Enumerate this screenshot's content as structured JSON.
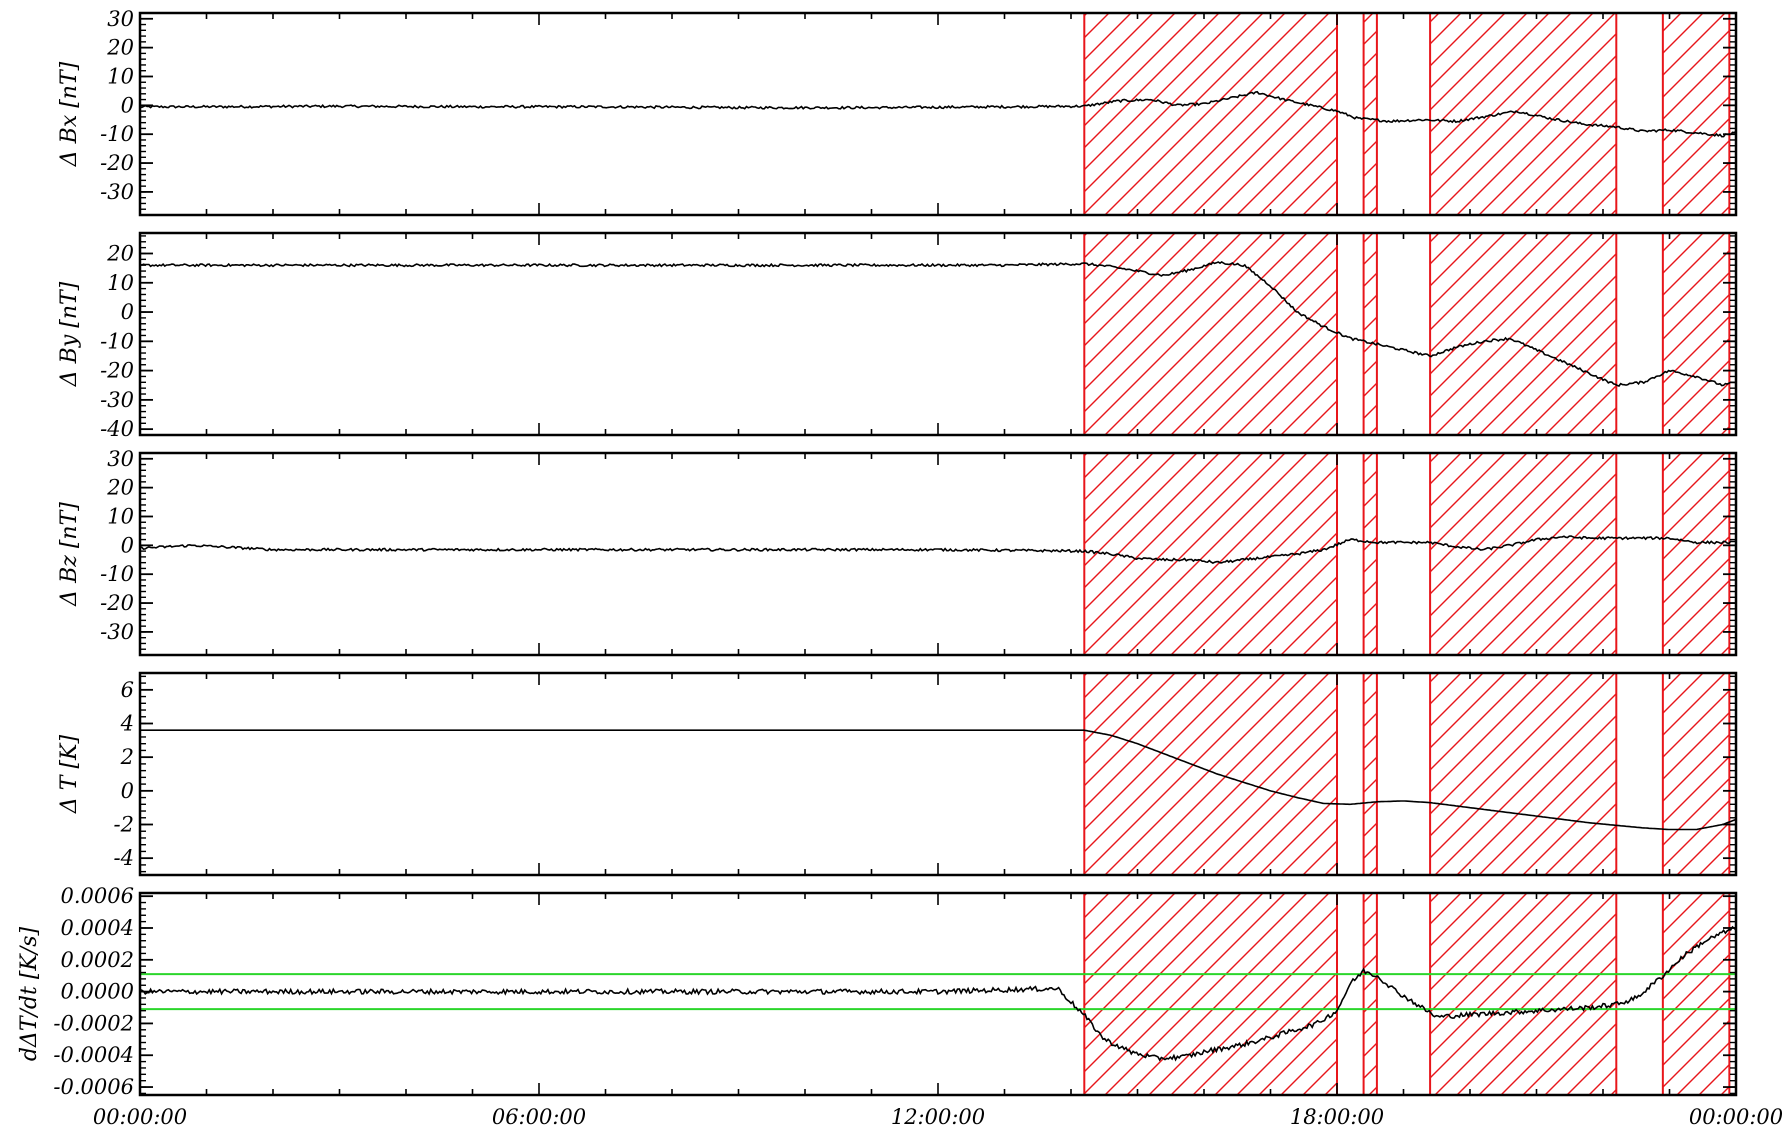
{
  "chart_data": {
    "type": "line",
    "x_range_hours": [
      0,
      24
    ],
    "x_tick_labels": [
      "00:00:00",
      "06:00:00",
      "12:00:00",
      "18:00:00",
      "00:00:00"
    ],
    "x_tick_hours": [
      0,
      6,
      12,
      18,
      24
    ],
    "flagged_intervals_hours": [
      [
        14.2,
        18.0
      ],
      [
        18.4,
        18.6
      ],
      [
        19.4,
        22.2
      ],
      [
        22.9,
        23.9
      ]
    ],
    "colors": {
      "trace": "#000000",
      "hatch": "#e8161b",
      "threshold": "#2bd62b"
    },
    "panels": [
      {
        "ylabel": "Δ Bx [nT]",
        "ylim": [
          -38,
          32
        ],
        "y_ticks": [
          30,
          20,
          10,
          0,
          -10,
          -20,
          -30
        ],
        "y_tick_labels": [
          "30",
          "20",
          "10",
          "0",
          "-10",
          "-20",
          "-30"
        ],
        "x_hours": [
          0,
          1,
          3,
          5,
          7,
          9,
          11,
          13,
          14.2,
          14.7,
          15.2,
          15.6,
          16.0,
          16.4,
          16.8,
          17.2,
          17.6,
          18.0,
          18.3,
          18.8,
          19.3,
          19.8,
          20.2,
          20.7,
          21.2,
          21.7,
          22.2,
          22.6,
          23.0,
          23.4,
          23.8,
          24.0
        ],
        "values": [
          -0.5,
          -0.5,
          -0.3,
          -0.5,
          -0.5,
          -0.8,
          -0.8,
          -0.5,
          -0.3,
          1.5,
          2,
          0,
          0.5,
          2.5,
          4.5,
          2,
          0,
          -2,
          -4.5,
          -5.5,
          -5,
          -5.5,
          -4,
          -2,
          -4.5,
          -6.5,
          -7.5,
          -9,
          -8.5,
          -9.5,
          -10.5,
          -9.5
        ],
        "thresholds": []
      },
      {
        "ylabel": "Δ By [nT]",
        "ylim": [
          -42,
          27
        ],
        "y_ticks": [
          20,
          10,
          0,
          -10,
          -20,
          -30,
          -40
        ],
        "y_tick_labels": [
          "20",
          "10",
          "0",
          "-10",
          "-20",
          "-30",
          "-40"
        ],
        "x_hours": [
          0,
          1,
          3,
          5,
          7,
          9,
          11,
          13,
          14.2,
          14.6,
          15.0,
          15.4,
          15.8,
          16.2,
          16.6,
          17.0,
          17.4,
          17.8,
          18.2,
          18.6,
          19.0,
          19.4,
          19.8,
          20.2,
          20.6,
          21.0,
          21.4,
          21.8,
          22.2,
          22.6,
          23.0,
          23.4,
          23.8,
          24.0
        ],
        "values": [
          16,
          16,
          16,
          16,
          16,
          16,
          16,
          16,
          16.5,
          15.5,
          14,
          12.5,
          14.5,
          17,
          16,
          9,
          0,
          -5,
          -9,
          -11,
          -13,
          -15,
          -12,
          -10,
          -9,
          -13,
          -17,
          -21,
          -25,
          -24,
          -20,
          -22,
          -25,
          -24
        ],
        "thresholds": []
      },
      {
        "ylabel": "Δ Bz [nT]",
        "ylim": [
          -38,
          32
        ],
        "y_ticks": [
          30,
          20,
          10,
          0,
          -10,
          -20,
          -30
        ],
        "y_tick_labels": [
          "30",
          "20",
          "10",
          "0",
          "-10",
          "-20",
          "-30"
        ],
        "x_hours": [
          0,
          0.8,
          2,
          4,
          6,
          8,
          10,
          12,
          14.2,
          14.6,
          15.0,
          15.4,
          15.8,
          16.2,
          16.6,
          17.0,
          17.4,
          17.8,
          18.2,
          18.6,
          19.0,
          19.4,
          19.8,
          20.2,
          20.6,
          21.0,
          21.4,
          21.8,
          22.2,
          22.6,
          23.0,
          23.4,
          23.8,
          24.0
        ],
        "values": [
          -1,
          0,
          -1.5,
          -1.5,
          -1.5,
          -1.5,
          -1.5,
          -1.5,
          -2,
          -3,
          -4.5,
          -5,
          -5,
          -6,
          -5,
          -4,
          -3,
          -1.5,
          2,
          1,
          1,
          1,
          -0.5,
          -1.5,
          0,
          2,
          3,
          2.5,
          2.5,
          2.5,
          2.5,
          1,
          1,
          1
        ],
        "thresholds": []
      },
      {
        "ylabel": "Δ T [K]",
        "ylim": [
          -5,
          7
        ],
        "y_ticks": [
          6,
          4,
          2,
          0,
          -2,
          -4
        ],
        "y_tick_labels": [
          "6",
          "4",
          "2",
          "0",
          "-2",
          "-4"
        ],
        "x_hours": [
          0,
          2,
          4,
          6,
          8,
          10,
          12,
          14.2,
          14.6,
          15.0,
          15.4,
          15.8,
          16.2,
          16.6,
          17.0,
          17.4,
          17.8,
          18.2,
          18.6,
          19.0,
          19.4,
          19.8,
          20.2,
          20.6,
          21.0,
          21.4,
          21.8,
          22.2,
          22.6,
          23.0,
          23.4,
          23.8,
          24.0
        ],
        "values": [
          3.6,
          3.6,
          3.6,
          3.6,
          3.6,
          3.6,
          3.6,
          3.6,
          3.3,
          2.8,
          2.2,
          1.6,
          1.0,
          0.5,
          0.0,
          -0.4,
          -0.75,
          -0.8,
          -0.65,
          -0.6,
          -0.7,
          -0.9,
          -1.1,
          -1.3,
          -1.5,
          -1.7,
          -1.9,
          -2.05,
          -2.2,
          -2.3,
          -2.3,
          -2.0,
          -1.7
        ],
        "thresholds": []
      },
      {
        "ylabel": "dΔT/dt [K/s]",
        "ylim": [
          -0.00065,
          0.00062
        ],
        "y_ticks": [
          0.0006,
          0.0004,
          0.0002,
          0.0,
          -0.0002,
          -0.0004,
          -0.0006
        ],
        "y_tick_labels": [
          "0.0006",
          "0.0004",
          "0.0002",
          "0.0000",
          "-0.0002",
          "-0.0004",
          "-0.0006"
        ],
        "x_hours": [
          0,
          2,
          4,
          6,
          8,
          10,
          12,
          13.8,
          14.2,
          14.5,
          14.9,
          15.3,
          15.7,
          16.1,
          16.5,
          16.9,
          17.3,
          17.7,
          18.0,
          18.2,
          18.4,
          18.6,
          18.9,
          19.2,
          19.5,
          19.8,
          20.2,
          20.6,
          21.0,
          21.4,
          21.8,
          22.2,
          22.5,
          22.9,
          23.2,
          23.5,
          23.8,
          24.0
        ],
        "values": [
          0.0,
          0.0,
          0.0,
          0.0,
          0.0,
          0.0,
          0.0,
          2e-05,
          -0.00015,
          -0.0003,
          -0.00038,
          -0.00042,
          -0.00041,
          -0.00037,
          -0.00034,
          -0.0003,
          -0.00025,
          -0.0002,
          -0.00012,
          5e-05,
          0.00013,
          0.0001,
          0.0,
          -8e-05,
          -0.00016,
          -0.00015,
          -0.00014,
          -0.00013,
          -0.00012,
          -0.00011,
          -0.0001,
          -8e-05,
          -4e-05,
          0.0001,
          0.00022,
          0.00031,
          0.00037,
          0.0004
        ],
        "thresholds": [
          0.00011,
          -0.00011
        ]
      }
    ]
  }
}
